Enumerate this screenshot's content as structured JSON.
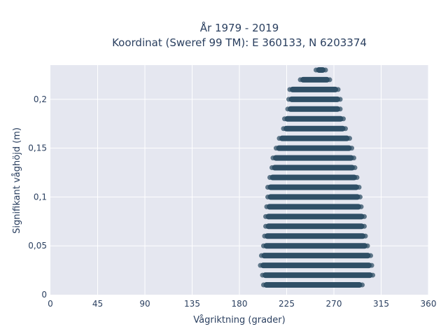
{
  "chart_data": {
    "type": "scatter",
    "title": "År 1979 - 2019",
    "subtitle": "Koordinat (Sweref 99 TM): E 360133, N 6203374",
    "xlabel": "Vågriktning (grader)",
    "ylabel": "Signifikant våghöjd (m)",
    "xlim": [
      0,
      360
    ],
    "ylim": [
      0,
      0.235
    ],
    "x_ticks": [
      0,
      45,
      90,
      135,
      180,
      225,
      270,
      315,
      360
    ],
    "x_tick_labels": [
      "0",
      "45",
      "90",
      "135",
      "180",
      "225",
      "270",
      "315",
      "360"
    ],
    "y_ticks": [
      0,
      0.05,
      0.1,
      0.15,
      0.2
    ],
    "y_tick_labels": [
      "0",
      "0,05",
      "0,1",
      "0,15",
      "0,2"
    ],
    "grid": true,
    "legend": "none",
    "marker_color": "#2f4f66",
    "background": "#e5e7f0",
    "series": [
      {
        "description_bands": "each band is a horizontal row of dense points at a given wave height spanning a direction range",
        "bands": [
          {
            "y": 0.01,
            "x_min": 203,
            "x_max": 297
          },
          {
            "y": 0.02,
            "x_min": 202,
            "x_max": 307
          },
          {
            "y": 0.03,
            "x_min": 200,
            "x_max": 306
          },
          {
            "y": 0.04,
            "x_min": 201,
            "x_max": 305
          },
          {
            "y": 0.05,
            "x_min": 203,
            "x_max": 302
          },
          {
            "y": 0.06,
            "x_min": 204,
            "x_max": 300
          },
          {
            "y": 0.07,
            "x_min": 205,
            "x_max": 299
          },
          {
            "y": 0.08,
            "x_min": 205,
            "x_max": 299
          },
          {
            "y": 0.09,
            "x_min": 206,
            "x_max": 296
          },
          {
            "y": 0.1,
            "x_min": 207,
            "x_max": 295
          },
          {
            "y": 0.11,
            "x_min": 207,
            "x_max": 294
          },
          {
            "y": 0.12,
            "x_min": 209,
            "x_max": 292
          },
          {
            "y": 0.13,
            "x_min": 211,
            "x_max": 290
          },
          {
            "y": 0.14,
            "x_min": 212,
            "x_max": 289
          },
          {
            "y": 0.15,
            "x_min": 215,
            "x_max": 287
          },
          {
            "y": 0.16,
            "x_min": 218,
            "x_max": 285
          },
          {
            "y": 0.17,
            "x_min": 222,
            "x_max": 281
          },
          {
            "y": 0.18,
            "x_min": 223,
            "x_max": 279
          },
          {
            "y": 0.19,
            "x_min": 226,
            "x_max": 276
          },
          {
            "y": 0.2,
            "x_min": 227,
            "x_max": 276
          },
          {
            "y": 0.21,
            "x_min": 228,
            "x_max": 274
          },
          {
            "y": 0.22,
            "x_min": 238,
            "x_max": 266
          },
          {
            "y": 0.23,
            "x_min": 253,
            "x_max": 262
          }
        ]
      }
    ]
  }
}
